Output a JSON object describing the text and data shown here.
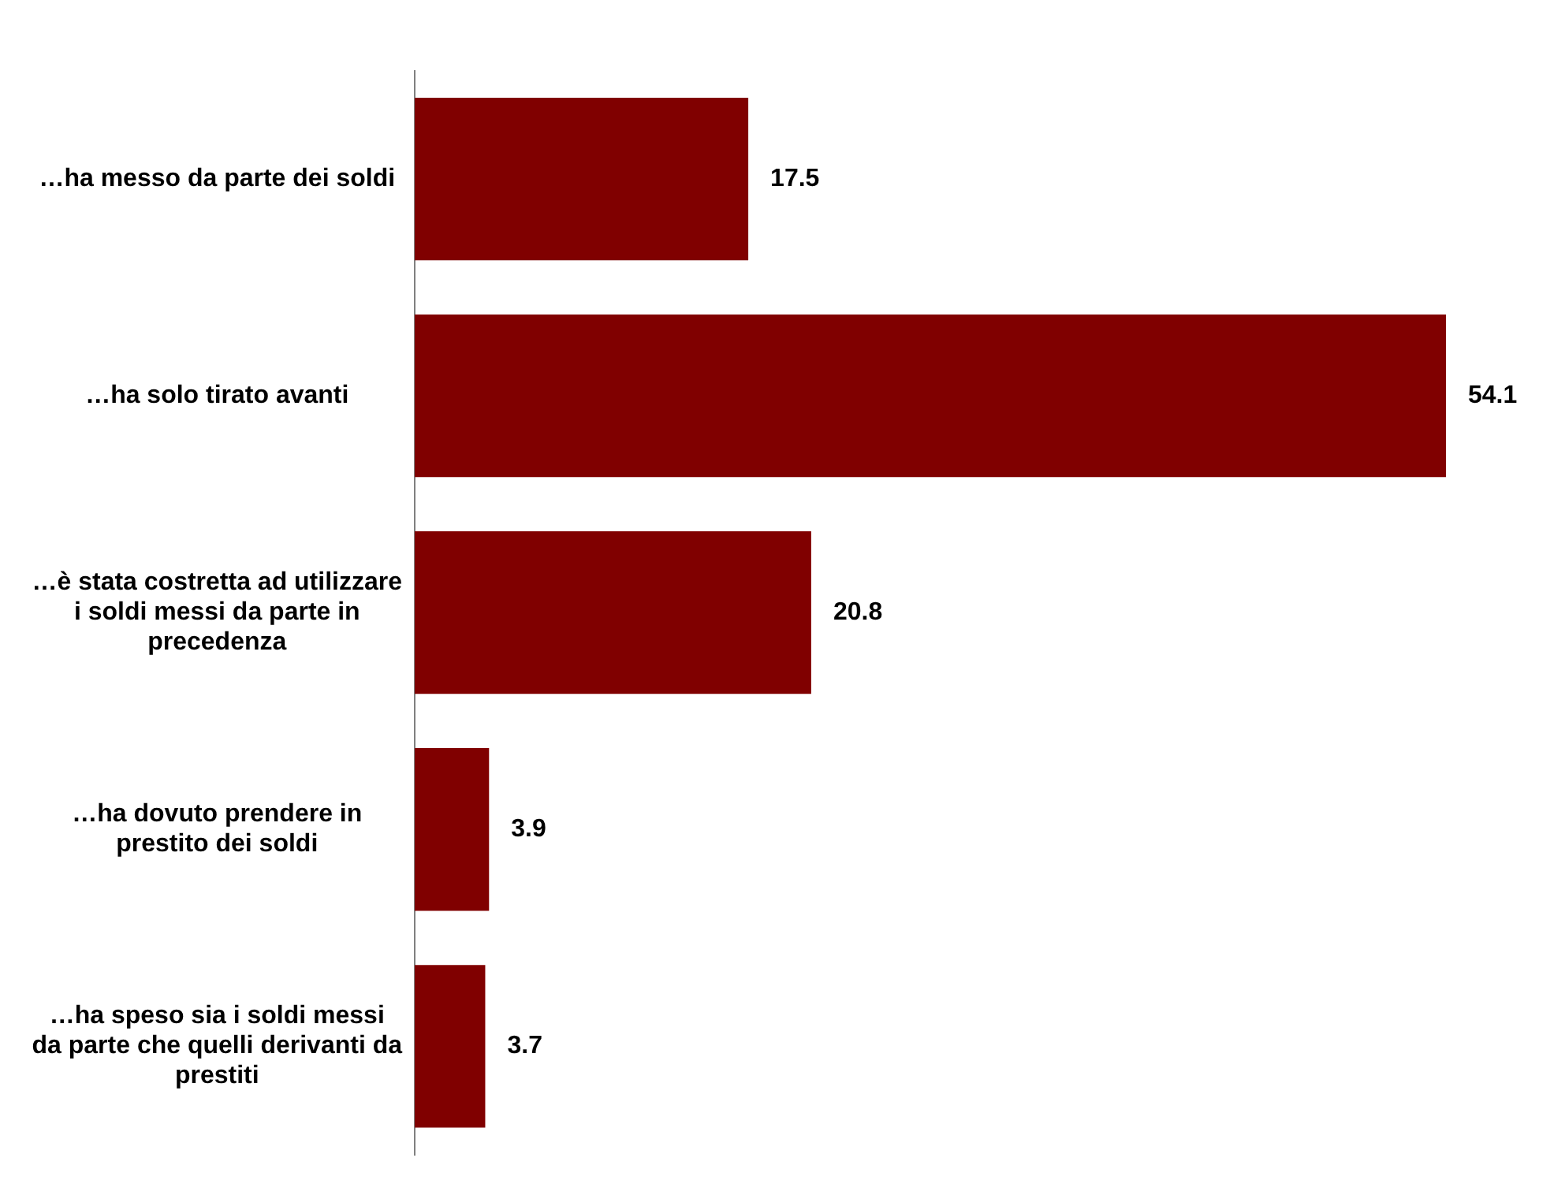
{
  "chart_data": {
    "type": "bar",
    "orientation": "horizontal",
    "categories": [
      "…ha messo da parte dei soldi",
      "…ha solo tirato avanti",
      "…è stata costretta ad utilizzare i soldi messi da parte in precedenza",
      "…ha dovuto prendere in prestito dei soldi",
      "…ha speso sia i soldi messi da parte che quelli derivanti da prestiti"
    ],
    "values": [
      17.5,
      54.1,
      20.8,
      3.9,
      3.7
    ],
    "color": "#800000",
    "data_labels": true,
    "grid": false
  }
}
